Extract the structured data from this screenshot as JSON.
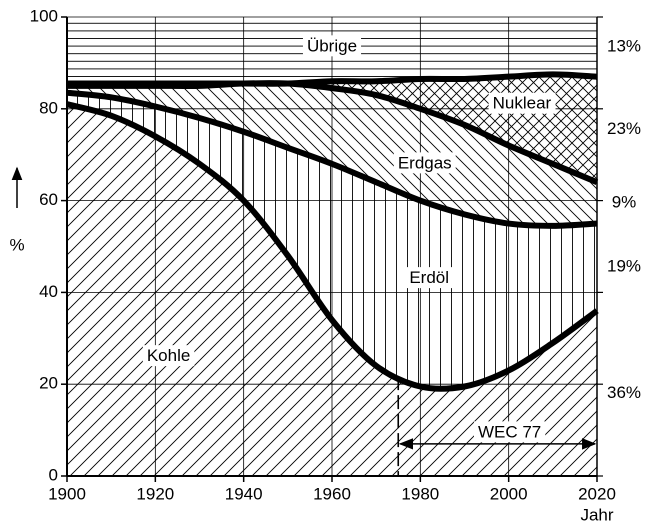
{
  "chart_data": {
    "type": "stacked-area",
    "x": [
      1900,
      1910,
      1920,
      1930,
      1940,
      1950,
      1960,
      1970,
      1980,
      1990,
      2000,
      2010,
      2020
    ],
    "series": [
      {
        "name": "Kohle",
        "color": "#000000",
        "pattern": "diag-up",
        "end_label": "36%",
        "values": [
          81,
          78.5,
          74,
          68,
          60,
          48,
          34,
          24,
          19.5,
          19.5,
          23,
          29,
          36
        ]
      },
      {
        "name": "Erdöl",
        "color": "#000000",
        "pattern": "vertical",
        "end_label": "19%",
        "values": [
          2.5,
          4,
          6.5,
          10,
          15,
          23.5,
          34,
          40,
          40.5,
          37.5,
          32,
          25.5,
          19
        ]
      },
      {
        "name": "Erdgas",
        "color": "#000000",
        "pattern": "diag-down",
        "end_label": "9%",
        "values": [
          1.5,
          2.5,
          4.5,
          7,
          10.5,
          14,
          16.5,
          19,
          20,
          19.5,
          17,
          13.5,
          9
        ]
      },
      {
        "name": "Nuklear",
        "color": "#000000",
        "pattern": "cross",
        "end_label": "23%",
        "values": [
          0.5,
          0.5,
          0.5,
          0.5,
          0,
          0,
          1.5,
          3,
          6.5,
          10,
          15,
          19.5,
          23
        ]
      },
      {
        "name": "Übrige",
        "color": "#000000",
        "pattern": "horizontal",
        "end_label": "13%",
        "values": [
          14.5,
          14.5,
          14.5,
          14.5,
          14.5,
          14.5,
          14,
          14,
          13.5,
          13.5,
          13,
          12.5,
          13
        ]
      }
    ],
    "xlim": [
      1900,
      2020
    ],
    "ylim": [
      0,
      100
    ],
    "xticks": [
      1900,
      1920,
      1940,
      1960,
      1980,
      2000,
      2020
    ],
    "yticks": [
      0,
      20,
      40,
      60,
      80,
      100
    ],
    "grid": true,
    "xlabel": "Jahr",
    "ylabel": "%",
    "annotation": {
      "text": "WEC 77",
      "from": 1975,
      "to": 2020
    }
  }
}
